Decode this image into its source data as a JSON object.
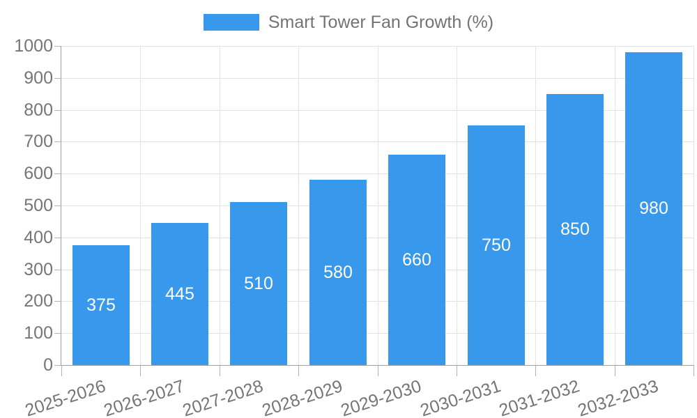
{
  "chart_data": {
    "type": "bar",
    "title": "Smart Tower Fan Growth (%)",
    "categories": [
      "2025-2026",
      "2026-2027",
      "2027-2028",
      "2028-2029",
      "2029-2030",
      "2030-2031",
      "2031-2032",
      "2032-2033"
    ],
    "values": [
      375,
      445,
      510,
      580,
      660,
      750,
      850,
      980
    ],
    "xlabel": "",
    "ylabel": "",
    "ylim": [
      0,
      1000
    ],
    "ytick_step": 100,
    "ytick_labels": [
      "0",
      "100",
      "200",
      "300",
      "400",
      "500",
      "600",
      "700",
      "800",
      "900",
      "1000"
    ],
    "grid": true,
    "legend_position": "top",
    "value_label_position": "inside-center",
    "colors": {
      "bar": "#3899EC",
      "grid": "#e3e3e3",
      "axis": "#9e9e9e",
      "tick": "#b3b3b3",
      "tick_label": "#757575",
      "legend_label": "#737373",
      "value_label": "#ffffff",
      "background": "#ffffff"
    }
  }
}
